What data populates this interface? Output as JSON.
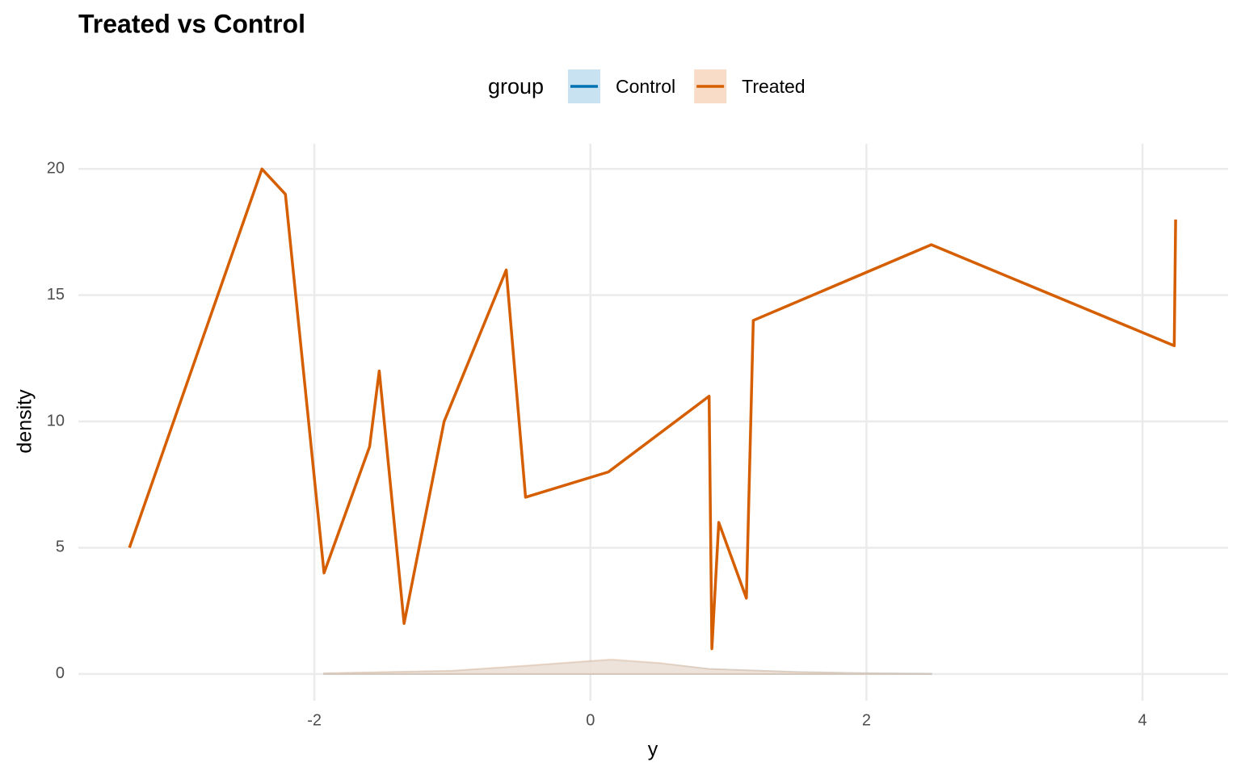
{
  "chart_data": {
    "type": "line",
    "title": "Treated vs Control",
    "x_label": "y",
    "y_label": "density",
    "legend_title": "group",
    "xlim": [
      -3.71,
      4.62
    ],
    "ylim": [
      -1.06,
      21.0
    ],
    "xticks": [
      -2,
      0,
      2,
      4
    ],
    "yticks": [
      0,
      5,
      10,
      15,
      20
    ],
    "grid": true,
    "legend": "top",
    "series": [
      {
        "name": "Control",
        "color": "#0072B2",
        "fill": "#c9e2f1",
        "x": [],
        "values": [],
        "density_x": [
          -1.93,
          -1.0,
          -0.5,
          0,
          0.15,
          0.5,
          0.86,
          1.5,
          2.0,
          2.47
        ],
        "density": [
          0.02,
          0.12,
          0.3,
          0.5,
          0.55,
          0.42,
          0.2,
          0.08,
          0.03,
          0.01
        ]
      },
      {
        "name": "Treated",
        "color": "#D55E00",
        "fill": "#f9dcc8",
        "x": [
          -3.34,
          -2.38,
          -2.21,
          -1.93,
          -1.6,
          -1.53,
          -1.35,
          -1.06,
          -0.61,
          -0.47,
          0.13,
          0.86,
          0.88,
          0.93,
          1.13,
          1.18,
          2.47,
          4.23,
          4.24
        ],
        "values": [
          5,
          20,
          19,
          4,
          9,
          12,
          2,
          10,
          16,
          7,
          8,
          11,
          1,
          6,
          3,
          14,
          17,
          13,
          18
        ],
        "density_x": [
          -1.93,
          -1.0,
          -0.5,
          0,
          0.15,
          0.5,
          0.86,
          1.5,
          2.0,
          2.47
        ],
        "density": [
          0.03,
          0.13,
          0.32,
          0.52,
          0.58,
          0.44,
          0.2,
          0.08,
          0.03,
          0.01
        ]
      }
    ]
  }
}
